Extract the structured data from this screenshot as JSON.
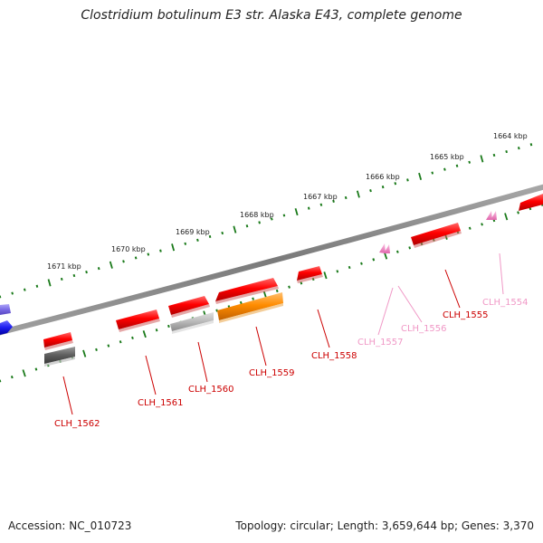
{
  "title": "Clostridium botulinum E3 str. Alaska E43, complete genome",
  "footer": {
    "accession": "Accession: NC_010723",
    "stats": "Topology: circular; Length: 3,659,644 bp; Genes: 3,370"
  },
  "colors": {
    "backbone": "#808080",
    "tick": "#1a7a1a",
    "cds_red": "#ff0000",
    "cds_orange": "#ff8c00",
    "cds_gray": "#b8b8b8",
    "cds_dark": "#5e5e5e",
    "cds_blue": "#1e1ef0",
    "cds_lavender": "#7a6ae6",
    "pink": "#f07cc0",
    "label_red": "#cc0000",
    "label_pink": "#f098c6"
  },
  "kbp_labels": [
    "1664 kbp",
    "1665 kbp",
    "1666 kbp",
    "1667 kbp",
    "1668 kbp",
    "1669 kbp",
    "1670 kbp",
    "1671 kbp"
  ],
  "gene_labels": [
    "CLH_1554",
    "CLH_1555",
    "CLH_1556",
    "CLH_1557",
    "CLH_1558",
    "CLH_1559",
    "CLH_1560",
    "CLH_1561",
    "CLH_1562"
  ]
}
